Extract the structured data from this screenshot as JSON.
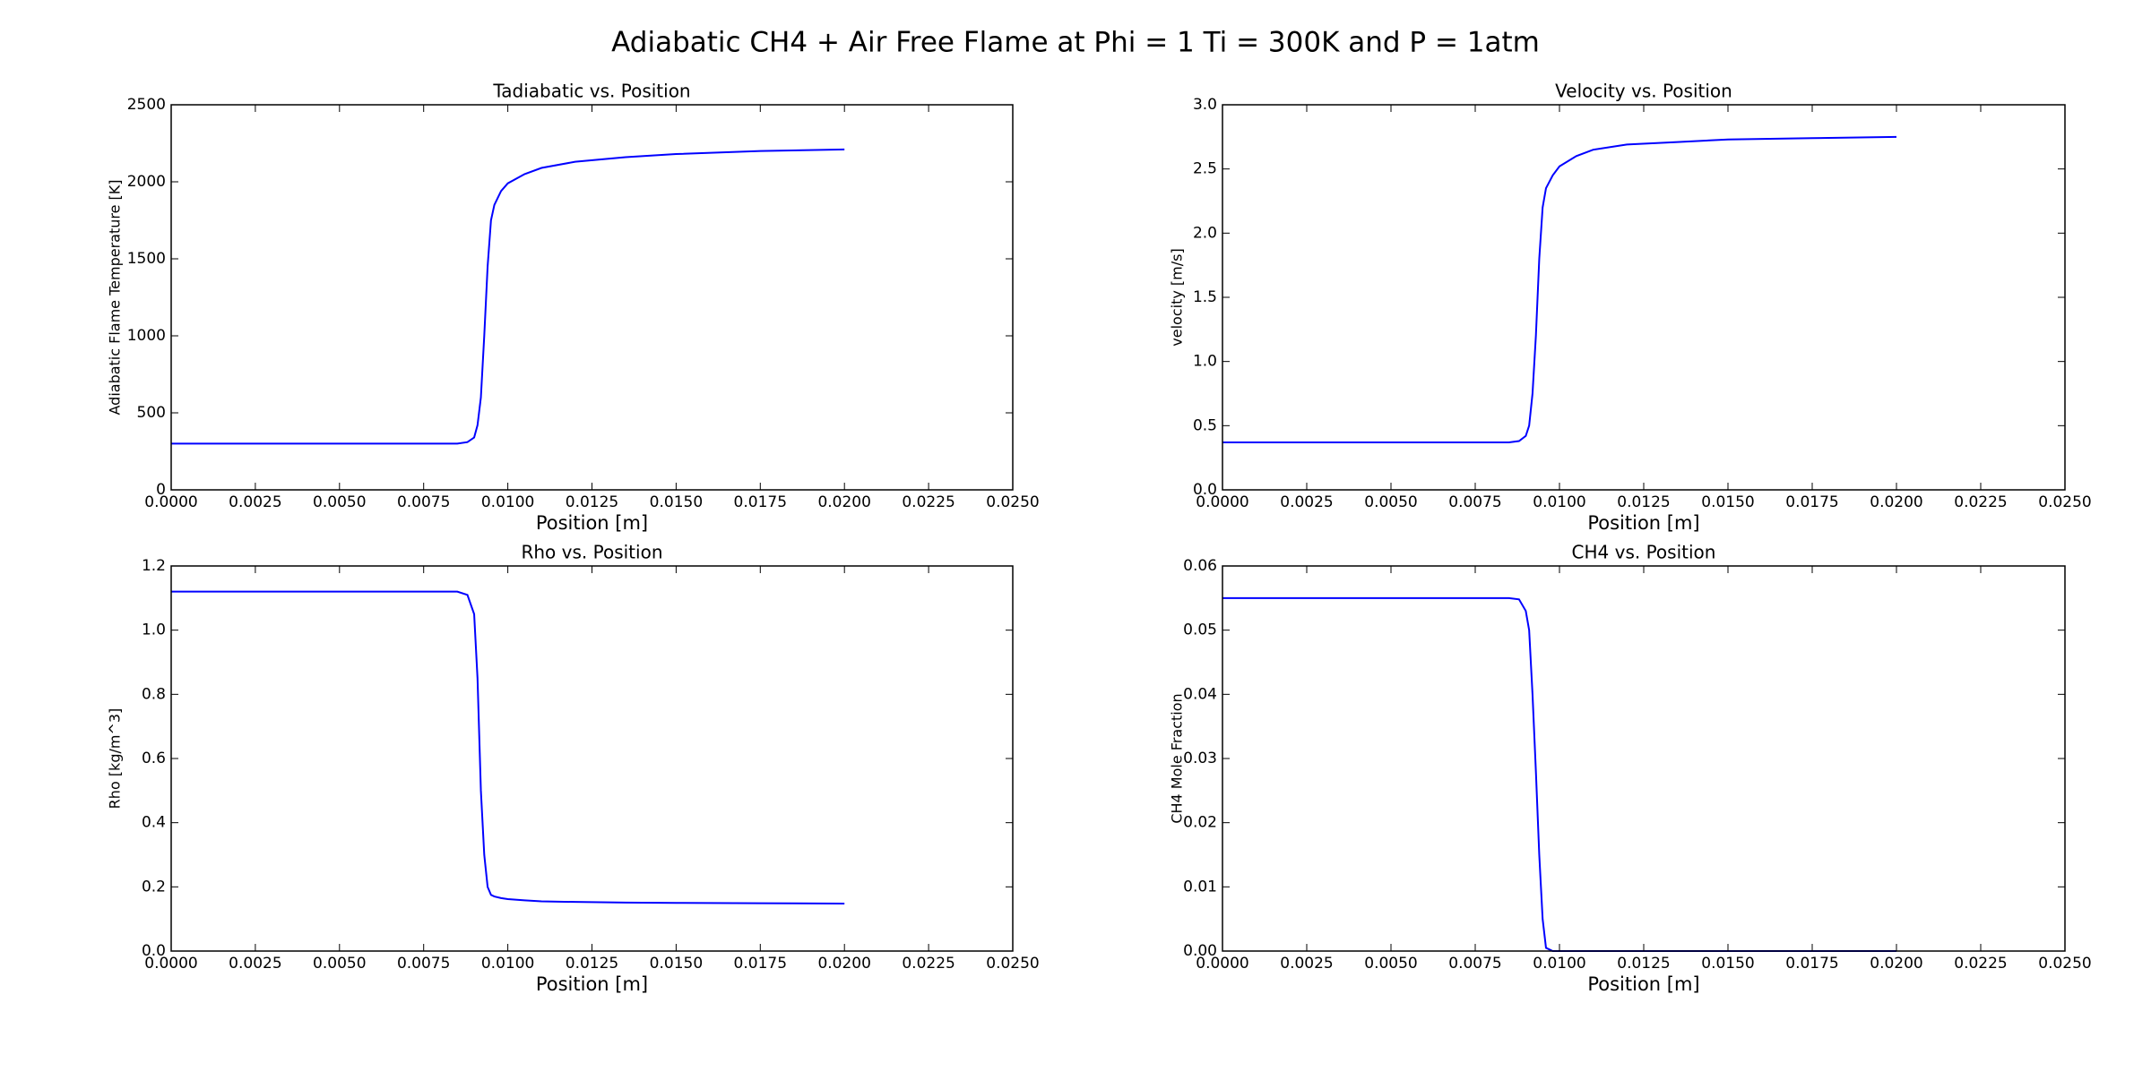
{
  "title": "Adiabatic CH4 + Air Free Flame at Phi = 1 Ti = 300K and P = 1atm",
  "chart_data": [
    {
      "type": "line",
      "title": "Tadiabatic vs. Position",
      "xlabel": "Position [m]",
      "ylabel": "Adiabatic Flame Temperature [K]",
      "x": [
        0,
        0.002,
        0.004,
        0.006,
        0.008,
        0.0085,
        0.0088,
        0.009,
        0.0091,
        0.0092,
        0.0093,
        0.0094,
        0.0095,
        0.0096,
        0.0098,
        0.01,
        0.0105,
        0.011,
        0.012,
        0.0135,
        0.015,
        0.0175,
        0.02
      ],
      "values": [
        300,
        300,
        300,
        300,
        300,
        300,
        310,
        340,
        420,
        600,
        1000,
        1450,
        1750,
        1850,
        1940,
        1990,
        2050,
        2090,
        2130,
        2160,
        2180,
        2200,
        2210
      ],
      "color": "#0000ff",
      "xlim": [
        0,
        0.025
      ],
      "xticks": [
        {
          "value": 0,
          "label": "0.0000"
        },
        {
          "value": 0.0025,
          "label": "0.0025"
        },
        {
          "value": 0.005,
          "label": "0.0050"
        },
        {
          "value": 0.0075,
          "label": "0.0075"
        },
        {
          "value": 0.01,
          "label": "0.0100"
        },
        {
          "value": 0.0125,
          "label": "0.0125"
        },
        {
          "value": 0.015,
          "label": "0.0150"
        },
        {
          "value": 0.0175,
          "label": "0.0175"
        },
        {
          "value": 0.02,
          "label": "0.0200"
        },
        {
          "value": 0.0225,
          "label": "0.0225"
        },
        {
          "value": 0.025,
          "label": "0.0250"
        }
      ],
      "ylim": [
        0,
        2500
      ],
      "yticks": [
        0,
        500,
        1000,
        1500,
        2000,
        2500
      ]
    },
    {
      "type": "line",
      "title": "Velocity vs. Position",
      "xlabel": "Position [m]",
      "ylabel": "velocity [m/s]",
      "x": [
        0,
        0.002,
        0.004,
        0.006,
        0.008,
        0.0085,
        0.0088,
        0.009,
        0.0091,
        0.0092,
        0.0093,
        0.0094,
        0.0095,
        0.0096,
        0.0098,
        0.01,
        0.0105,
        0.011,
        0.012,
        0.0135,
        0.015,
        0.0175,
        0.02
      ],
      "values": [
        0.37,
        0.37,
        0.37,
        0.37,
        0.37,
        0.37,
        0.38,
        0.42,
        0.5,
        0.75,
        1.2,
        1.8,
        2.2,
        2.35,
        2.45,
        2.52,
        2.6,
        2.65,
        2.69,
        2.71,
        2.73,
        2.74,
        2.75
      ],
      "color": "#0000ff",
      "xlim": [
        0,
        0.025
      ],
      "xticks": [
        {
          "value": 0,
          "label": "0.0000"
        },
        {
          "value": 0.0025,
          "label": "0.0025"
        },
        {
          "value": 0.005,
          "label": "0.0050"
        },
        {
          "value": 0.0075,
          "label": "0.0075"
        },
        {
          "value": 0.01,
          "label": "0.0100"
        },
        {
          "value": 0.0125,
          "label": "0.0125"
        },
        {
          "value": 0.015,
          "label": "0.0150"
        },
        {
          "value": 0.0175,
          "label": "0.0175"
        },
        {
          "value": 0.02,
          "label": "0.0200"
        },
        {
          "value": 0.0225,
          "label": "0.0225"
        },
        {
          "value": 0.025,
          "label": "0.0250"
        }
      ],
      "ylim": [
        0,
        3
      ],
      "yticks": [
        {
          "value": 0,
          "label": "0.0"
        },
        0.5,
        {
          "value": 1,
          "label": "1.0"
        },
        1.5,
        {
          "value": 2,
          "label": "2.0"
        },
        2.5,
        {
          "value": 3,
          "label": "3.0"
        }
      ]
    },
    {
      "type": "line",
      "title": "Rho vs. Position",
      "xlabel": "Position [m]",
      "ylabel": "Rho [kg/m^3]",
      "x": [
        0,
        0.002,
        0.004,
        0.006,
        0.008,
        0.0085,
        0.0088,
        0.009,
        0.0091,
        0.0092,
        0.0093,
        0.0094,
        0.0095,
        0.0096,
        0.0098,
        0.01,
        0.0105,
        0.011,
        0.012,
        0.0135,
        0.015,
        0.0175,
        0.02
      ],
      "values": [
        1.12,
        1.12,
        1.12,
        1.12,
        1.12,
        1.12,
        1.11,
        1.05,
        0.85,
        0.5,
        0.3,
        0.2,
        0.175,
        0.17,
        0.165,
        0.162,
        0.158,
        0.155,
        0.153,
        0.151,
        0.15,
        0.149,
        0.148
      ],
      "color": "#0000ff",
      "xlim": [
        0,
        0.025
      ],
      "xticks": [
        {
          "value": 0,
          "label": "0.0000"
        },
        {
          "value": 0.0025,
          "label": "0.0025"
        },
        {
          "value": 0.005,
          "label": "0.0050"
        },
        {
          "value": 0.0075,
          "label": "0.0075"
        },
        {
          "value": 0.01,
          "label": "0.0100"
        },
        {
          "value": 0.0125,
          "label": "0.0125"
        },
        {
          "value": 0.015,
          "label": "0.0150"
        },
        {
          "value": 0.0175,
          "label": "0.0175"
        },
        {
          "value": 0.02,
          "label": "0.0200"
        },
        {
          "value": 0.0225,
          "label": "0.0225"
        },
        {
          "value": 0.025,
          "label": "0.0250"
        }
      ],
      "ylim": [
        0,
        1.2
      ],
      "yticks": [
        {
          "value": 0,
          "label": "0.0"
        },
        0.2,
        0.4,
        0.6,
        0.8,
        {
          "value": 1,
          "label": "1.0"
        },
        1.2
      ]
    },
    {
      "type": "line",
      "title": "CH4 vs. Position",
      "xlabel": "Position [m]",
      "ylabel": "CH4 Mole Fraction",
      "x": [
        0,
        0.002,
        0.004,
        0.006,
        0.008,
        0.0085,
        0.0088,
        0.009,
        0.0091,
        0.0092,
        0.0093,
        0.0094,
        0.0095,
        0.0096,
        0.0098,
        0.01,
        0.0105,
        0.011,
        0.012,
        0.0135,
        0.015,
        0.0175,
        0.02
      ],
      "values": [
        0.055,
        0.055,
        0.055,
        0.055,
        0.055,
        0.055,
        0.0548,
        0.053,
        0.05,
        0.04,
        0.028,
        0.015,
        0.005,
        0.0005,
        0,
        0,
        0,
        0,
        0,
        0,
        0,
        0,
        0
      ],
      "color": "#0000ff",
      "xlim": [
        0,
        0.025
      ],
      "xticks": [
        {
          "value": 0,
          "label": "0.0000"
        },
        {
          "value": 0.0025,
          "label": "0.0025"
        },
        {
          "value": 0.005,
          "label": "0.0050"
        },
        {
          "value": 0.0075,
          "label": "0.0075"
        },
        {
          "value": 0.01,
          "label": "0.0100"
        },
        {
          "value": 0.0125,
          "label": "0.0125"
        },
        {
          "value": 0.015,
          "label": "0.0150"
        },
        {
          "value": 0.0175,
          "label": "0.0175"
        },
        {
          "value": 0.02,
          "label": "0.0200"
        },
        {
          "value": 0.0225,
          "label": "0.0225"
        },
        {
          "value": 0.025,
          "label": "0.0250"
        }
      ],
      "ylim": [
        0,
        0.06
      ],
      "yticks": [
        {
          "value": 0,
          "label": "0.00"
        },
        0.01,
        0.02,
        0.03,
        0.04,
        0.05,
        0.06
      ]
    }
  ]
}
